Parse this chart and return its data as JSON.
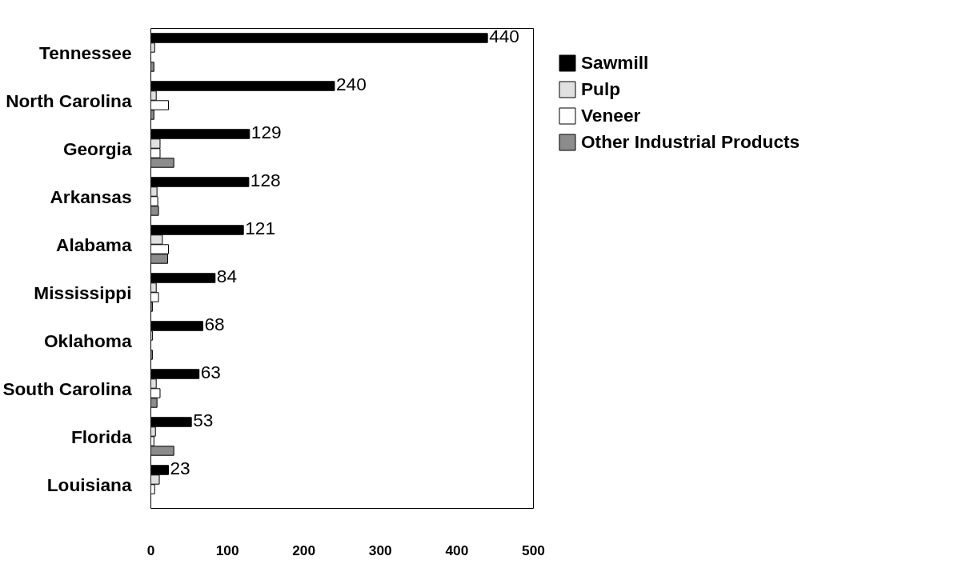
{
  "chart_data": {
    "type": "bar",
    "orientation": "horizontal",
    "categories": [
      "Tennessee",
      "North Carolina",
      "Georgia",
      "Arkansas",
      "Alabama",
      "Mississippi",
      "Oklahoma",
      "South Carolina",
      "Florida",
      "Louisiana"
    ],
    "series": [
      {
        "name": "Sawmill",
        "color": "#000000",
        "values": [
          440,
          240,
          129,
          128,
          121,
          84,
          68,
          63,
          53,
          23
        ],
        "value_labels": [
          "440",
          "240",
          "129",
          "128",
          "121",
          "84",
          "68",
          "63",
          "53",
          "23"
        ]
      },
      {
        "name": "Pulp",
        "color": "#e0e0e0",
        "values": [
          5,
          7,
          12,
          8,
          15,
          7,
          2,
          7,
          6,
          11
        ]
      },
      {
        "name": "Veneer",
        "color": "#ffffff",
        "values": [
          null,
          23,
          12,
          9,
          23,
          10,
          null,
          12,
          4,
          5
        ]
      },
      {
        "name": "Other Industrial Products",
        "color": "#8c8c8c",
        "values": [
          4,
          4,
          30,
          10,
          22,
          2,
          2,
          8,
          30,
          null
        ]
      }
    ],
    "xlim": [
      0,
      500
    ],
    "xticks": [
      0,
      100,
      200,
      300,
      400,
      500
    ],
    "grid": false,
    "legend": "right"
  }
}
